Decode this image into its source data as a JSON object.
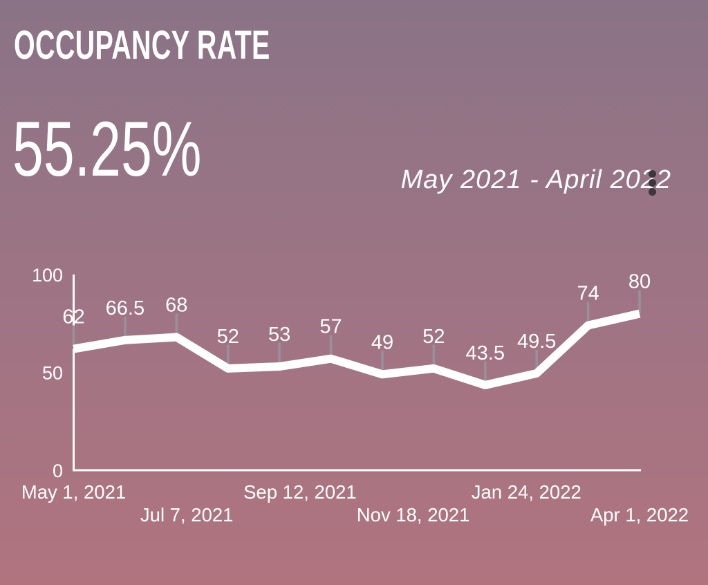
{
  "header": {
    "title": "OCCUPANCY RATE",
    "kpi_value": "55.25%",
    "date_range": "May 2021 - April 2022"
  },
  "menu": {
    "icon": "kebab-vertical-menu"
  },
  "colors": {
    "background_top": "#8a7386",
    "background_middle": "#9f7484",
    "background_bottom": "#b0747f",
    "text": "#ffffff",
    "axis": "#ffffff",
    "line": "#ffffff",
    "point_tick": "#969299",
    "menu_dots": "#3b383c"
  },
  "chart_data": {
    "type": "line",
    "title": "Occupancy Rate",
    "values": [
      62,
      66.5,
      68,
      52,
      53,
      57,
      49,
      52,
      43.5,
      49.5,
      74,
      80
    ],
    "point_labels": [
      "62",
      "66.5",
      "68",
      "52",
      "53",
      "57",
      "49",
      "52",
      "43.5",
      "49.5",
      "74",
      "80"
    ],
    "x_tick_labels": [
      "May 1, 2021",
      "Jul 7, 2021",
      "Sep 12, 2021",
      "Nov 18, 2021",
      "Jan 24, 2022",
      "Apr 1, 2022"
    ],
    "y_ticks": [
      0,
      50,
      100
    ],
    "y_tick_labels": [
      "0",
      "50",
      "100"
    ],
    "ylim": [
      0,
      100
    ],
    "grid": false,
    "legend": false,
    "line_width": 12
  }
}
